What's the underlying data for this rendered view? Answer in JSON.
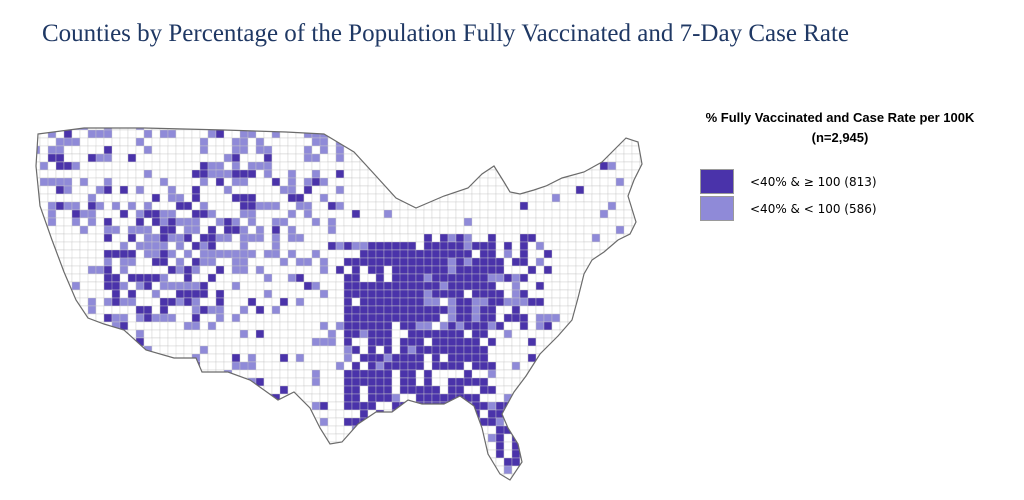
{
  "title": "Counties by Percentage of the Population Fully Vaccinated and 7-Day Case Rate",
  "legend": {
    "title": "% Fully Vaccinated and Case Rate per 100K",
    "subtitle": "(n=2,945)",
    "items": [
      {
        "label": "<40% & ≥ 100 (813)",
        "color": "#4a33aa",
        "key": "high"
      },
      {
        "label": "<40% & < 100 (586)",
        "color": "#8f8ad8",
        "key": "low"
      }
    ]
  },
  "map": {
    "outline_color": "#6b6b6b",
    "grid_color": "#c9c9c9",
    "other_fill": "#ffffff"
  }
}
